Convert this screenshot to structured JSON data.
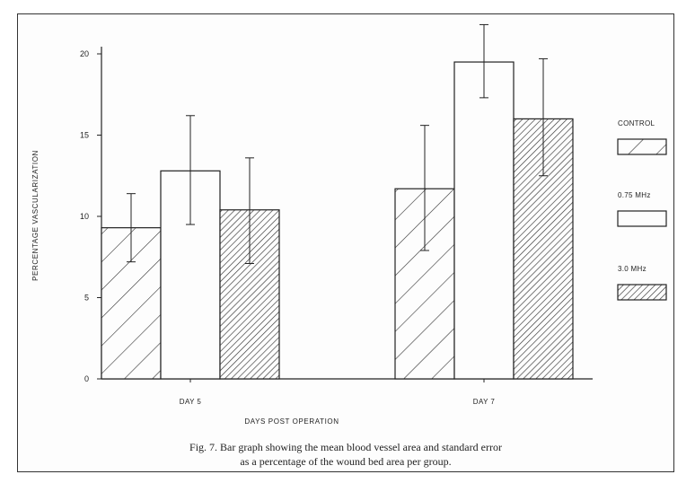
{
  "chart_data": {
    "type": "bar",
    "categories": [
      "DAY 5",
      "DAY 7"
    ],
    "series": [
      {
        "name": "CONTROL",
        "values": [
          9.3,
          11.7
        ],
        "errors": [
          [
            7.2,
            11.4
          ],
          [
            7.9,
            15.6
          ]
        ],
        "pattern": "wide-hatch"
      },
      {
        "name": "0.75 MHz",
        "values": [
          12.8,
          19.5
        ],
        "errors": [
          [
            9.5,
            16.2
          ],
          [
            17.3,
            21.8
          ]
        ],
        "pattern": "open"
      },
      {
        "name": "3.0 MHz",
        "values": [
          10.4,
          16.0
        ],
        "errors": [
          [
            7.1,
            13.6
          ],
          [
            12.5,
            19.7
          ]
        ],
        "pattern": "dense-hatch"
      }
    ],
    "xlabel": "DAYS POST OPERATION",
    "ylabel": "PERCENTAGE VASCULARIZATION",
    "yticks": [
      "0",
      "5",
      "10",
      "15",
      "20"
    ],
    "ylim": [
      0,
      20
    ],
    "grid": false,
    "legend_position": "right"
  },
  "caption": {
    "line1": "Fig. 7. Bar graph showing the mean blood vessel area and standard error",
    "line2": "as a percentage of the wound bed area per group."
  },
  "colors": {
    "ink": "#222222",
    "background": "#fdfdfd"
  }
}
